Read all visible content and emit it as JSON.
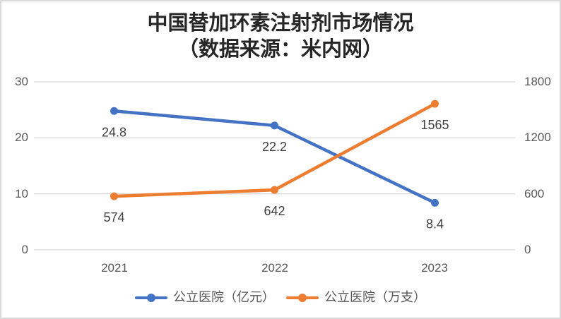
{
  "chart_data": {
    "type": "line",
    "title": "中国替加环素注射剂市场情况",
    "subtitle": "（数据来源：米内网）",
    "categories": [
      "2021",
      "2022",
      "2023"
    ],
    "series": [
      {
        "name": "公立医院（亿元）",
        "axis": "left",
        "color": "#4472C4",
        "values": [
          24.8,
          22.2,
          8.4
        ],
        "labels": [
          "24.8",
          "22.2",
          "8.4"
        ]
      },
      {
        "name": "公立医院（万支）",
        "axis": "right",
        "color": "#ED7D31",
        "values": [
          574,
          642,
          1565
        ],
        "labels": [
          "574",
          "642",
          "1565"
        ]
      }
    ],
    "left_axis": {
      "min": 0,
      "max": 30,
      "ticks": [
        30,
        20,
        10,
        0
      ]
    },
    "right_axis": {
      "min": 0,
      "max": 1800,
      "ticks": [
        1800,
        1200,
        600,
        0
      ]
    },
    "grid": true,
    "legend_position": "bottom"
  },
  "colors": {
    "series_blue": "#4472C4",
    "series_orange": "#ED7D31",
    "gridline": "#D9D9D9",
    "tick_text": "#595959",
    "data_label": "#404040",
    "title_text": "#262626",
    "frame_border": "#D9D9D9"
  }
}
